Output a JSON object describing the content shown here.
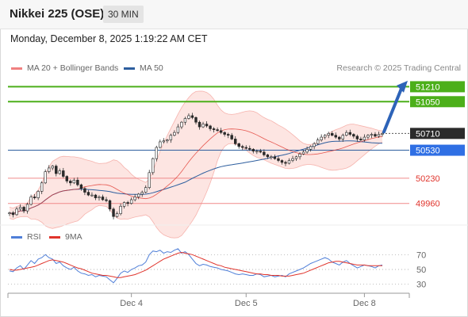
{
  "header": {
    "title": "Nikkei 225 (OSE)",
    "timeframe": "30 MIN"
  },
  "datetime": "Monday, December 8, 2025 1:19:22 AM CET",
  "legend": {
    "items": [
      {
        "label": "MA 20 + Bollinger Bands",
        "color": "#f08080"
      },
      {
        "label": "MA 50",
        "color": "#2d5e9e"
      }
    ],
    "credit": "Research © 2025 Trading Central"
  },
  "levels": [
    {
      "value": 51210,
      "label": "51210",
      "kind": "target",
      "color": "#4caf1a"
    },
    {
      "value": 51050,
      "label": "51050",
      "kind": "target",
      "color": "#4caf1a"
    },
    {
      "value": 50710,
      "label": "50710",
      "kind": "last",
      "color": "#2b2b2b"
    },
    {
      "value": 50530,
      "label": "50530",
      "kind": "pivot",
      "color": "#2f6fe4"
    },
    {
      "value": 50230,
      "label": "50230",
      "kind": "support",
      "color": "#e0342c"
    },
    {
      "value": 49960,
      "label": "49960",
      "kind": "support",
      "color": "#e0342c"
    }
  ],
  "rsi_legend": {
    "items": [
      {
        "label": "RSI",
        "color": "#4f7fd8"
      },
      {
        "label": "9MA",
        "color": "#e0342c"
      }
    ]
  },
  "chart_data": {
    "type": "candlestick",
    "price_range": [
      49720,
      51290
    ],
    "x_labels": [
      "Dec 4",
      "Dec 5",
      "Dec 8"
    ],
    "close": [
      49860,
      49840,
      49900,
      49920,
      49880,
      49950,
      50030,
      50020,
      50090,
      50180,
      50300,
      50340,
      50360,
      50280,
      50310,
      50250,
      50200,
      50180,
      50210,
      50160,
      50120,
      50080,
      50050,
      50050,
      50020,
      50030,
      50000,
      49990,
      49900,
      49820,
      49850,
      49930,
      49970,
      49960,
      50000,
      50030,
      50060,
      50080,
      50130,
      50290,
      50440,
      50560,
      50620,
      50630,
      50640,
      50690,
      50720,
      50780,
      50830,
      50870,
      50900,
      50880,
      50830,
      50780,
      50810,
      50790,
      50760,
      50750,
      50740,
      50720,
      50700,
      50690,
      50650,
      50600,
      50570,
      50560,
      50550,
      50540,
      50520,
      50520,
      50510,
      50480,
      50460,
      50460,
      50440,
      50420,
      50400,
      50390,
      50420,
      50440,
      50460,
      50490,
      50510,
      50540,
      50570,
      50600,
      50640,
      50670,
      50690,
      50710,
      50690,
      50670,
      50650,
      50690,
      50720,
      50700,
      50680,
      50650,
      50640,
      50670,
      50690,
      50700,
      50680,
      50700,
      50710
    ],
    "rsi": {
      "levels": [
        70,
        50,
        30
      ],
      "range": [
        20,
        80
      ],
      "rsi": [
        48,
        47,
        52,
        55,
        50,
        56,
        62,
        58,
        64,
        66,
        70,
        66,
        64,
        58,
        60,
        55,
        52,
        50,
        53,
        48,
        45,
        44,
        42,
        43,
        40,
        42,
        41,
        40,
        36,
        32,
        38,
        45,
        48,
        46,
        50,
        52,
        55,
        56,
        60,
        70,
        75,
        74,
        76,
        72,
        74,
        73,
        76,
        78,
        72,
        74,
        70,
        64,
        58,
        55,
        57,
        56,
        54,
        53,
        52,
        50,
        49,
        48,
        46,
        44,
        43,
        44,
        43,
        42,
        42,
        44,
        43,
        40,
        41,
        42,
        40,
        41,
        42,
        40,
        44,
        46,
        48,
        50,
        52,
        55,
        58,
        60,
        62,
        64,
        66,
        64,
        60,
        58,
        56,
        60,
        62,
        58,
        55,
        52,
        54,
        56,
        55,
        54,
        52,
        55,
        56
      ],
      "ma9": [
        50,
        49,
        49,
        50,
        51,
        52,
        53,
        54,
        56,
        58,
        60,
        62,
        63,
        62,
        61,
        60,
        58,
        56,
        54,
        52,
        51,
        49,
        47,
        45,
        44,
        43,
        42,
        42,
        41,
        40,
        39,
        39,
        40,
        41,
        42,
        43,
        45,
        47,
        49,
        52,
        55,
        58,
        61,
        64,
        66,
        68,
        70,
        72,
        73,
        72,
        71,
        70,
        68,
        66,
        64,
        62,
        60,
        58,
        56,
        55,
        53,
        52,
        51,
        50,
        49,
        48,
        47,
        46,
        45,
        44,
        44,
        43,
        43,
        42,
        42,
        42,
        41,
        41,
        41,
        42,
        43,
        44,
        45,
        47,
        49,
        51,
        53,
        55,
        57,
        59,
        60,
        61,
        61,
        60,
        59,
        58,
        57,
        56,
        56,
        56,
        55,
        55,
        55,
        55,
        55
      ]
    }
  }
}
